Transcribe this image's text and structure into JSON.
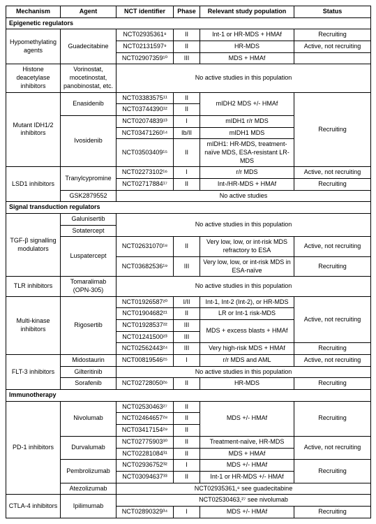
{
  "headers": {
    "mechanism": "Mechanism",
    "agent": "Agent",
    "nct": "NCT identifier",
    "phase": "Phase",
    "population": "Relevant study population",
    "status": "Status"
  },
  "sections": {
    "epigenetic": "Epigenetic regulators",
    "signal": "Signal transduction regulators",
    "immuno": "Immunotherapy"
  },
  "mech": {
    "hypo": "Hypomethylating agents",
    "hdac": "Histone deacetylase inhibitors",
    "idh": "Mutant IDH1/2 inhibitors",
    "lsd1": "LSD1 inhibitors",
    "tgfb": "TGF-β signalling modulators",
    "tlr": "TLR inhibitors",
    "multi": "Multi-kinase inhibitors",
    "flt3": "FLT-3 inhibitors",
    "pd1": "PD-1 inhibitors",
    "ctla4": "CTLA-4 inhibitors"
  },
  "agent": {
    "guadecitabine": "Guadecitabine",
    "hdac_agents": "Vorinostat, mocetinostat, panobinostat, etc.",
    "enasidenib": "Enasidenib",
    "ivosidenib": "Ivosidenib",
    "tranylcypromine": "Tranylcypromine",
    "gsk": "GSK2879552",
    "galunisertib": "Galunisertib",
    "sotatercept": "Sotatercept",
    "luspatercept": "Luspatercept",
    "tomaralimab": "Tomaralimab (OPN-305)",
    "rigosertib": "Rigosertib",
    "midostaurin": "Midostaurin",
    "gilteritinib": "Gilteritinib",
    "sorafenib": "Sorafenib",
    "nivolumab": "Nivolumab",
    "durvalumab": "Durvalumab",
    "pembrolizumab": "Pembrolizumab",
    "atezolizumab": "Atezolizumab",
    "ipilimumab": "Ipilimumab"
  },
  "nct": {
    "g1": "NCT02935361⁸",
    "g2": "NCT02131597⁹",
    "g3": "NCT02907359¹⁰",
    "e1": "NCT03383575¹¹",
    "e2": "NCT03744390¹²",
    "i1": "NCT02074839¹³",
    "i2": "NCT03471260¹⁴",
    "i3": "NCT03503409¹⁵",
    "t1": "NCT02273102¹⁶",
    "t2": "NCT02717884¹⁷",
    "l1": "NCT02631070¹⁸",
    "l2": "NCT03682536¹⁹",
    "r1": "NCT01926587²⁰",
    "r2": "NCT01904682²¹",
    "r3": "NCT01928537²²",
    "r4": "NCT01241500²³",
    "r5": "NCT02562443²⁴",
    "m1": "NCT00819546²⁵",
    "s1": "NCT02728050²⁶",
    "n1": "NCT02530463²⁷",
    "n2": "NCT02464657²⁸",
    "n3": "NCT03417154²⁹",
    "d1": "NCT02775903³⁰",
    "d2": "NCT02281084³¹",
    "p1": "NCT02936752³²",
    "p2": "NCT03094637³³",
    "ip1": "NCT02890329³⁴"
  },
  "phase": {
    "I": "I",
    "II": "II",
    "III": "III",
    "I_II": "I/II",
    "Ib_II": "Ib/II"
  },
  "pop": {
    "g1": "Int-1 or HR-MDS + HMAf",
    "g2": "HR-MDS",
    "g3": "MDS + HMAf",
    "e1": "mIDH2 MDS +/- HMAf",
    "i1": "mIDH1 r/r MDS",
    "i2": "mIDH1 MDS",
    "i3": "mIDH1: HR-MDS, treatment-naïve MDS, ESA-resistant LR-MDS",
    "t1": "r/r MDS",
    "t2": "Int-/HR-MDS + HMAf",
    "l1": "Very low, low, or int-risk MDS refractory to ESA",
    "l2": "Very low, low, or int-risk MDS in ESA-naïve",
    "r1": "Int-1, Int-2 (Int-2), or HR-MDS",
    "r2": "LR or Int-1 risk-MDS",
    "r3": "MDS + excess blasts + HMAf",
    "r5": "Very high-risk MDS + HMAf",
    "m1": "r/r MDS and AML",
    "s1": "HR-MDS",
    "n1": "MDS +/- HMAf",
    "d1": "Treatment-naïve, HR-MDS",
    "d2": "MDS + HMAf",
    "p1": "MDS +/- HMAf",
    "p2": "Int-1 or HR-MDS +/- HMAf",
    "ip1": "MDS +/- HMAf"
  },
  "status": {
    "recruiting": "Recruiting",
    "active_not": "Active, not recruiting"
  },
  "notes": {
    "no_active_pop": "No active studies in this population",
    "no_active": "No active studies",
    "atezo": "NCT02935361,⁸ see guadecitabine",
    "ipi_nivo": "NCT02530463,²⁷ see nivolumab"
  }
}
